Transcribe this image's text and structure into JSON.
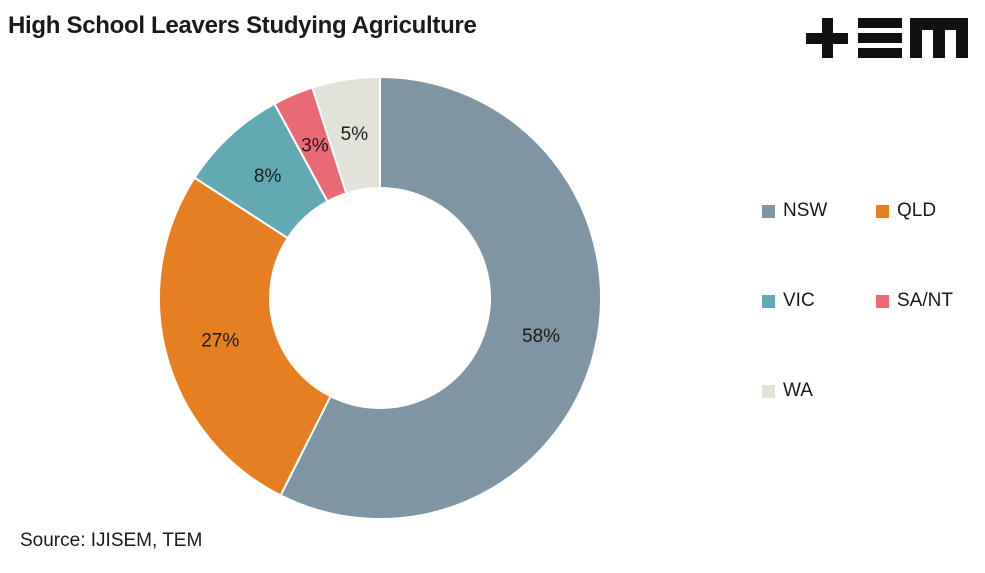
{
  "chart_data": {
    "type": "pie",
    "donut": true,
    "title": "High School Leavers Studying Agriculture",
    "categories": [
      "NSW",
      "QLD",
      "VIC",
      "SA/NT",
      "WA"
    ],
    "values": [
      58,
      27,
      8,
      3,
      5
    ],
    "labels": [
      "58%",
      "27%",
      "8%",
      "3%",
      "5%"
    ],
    "colors": [
      "#7f95a3",
      "#e67e22",
      "#63a9b4",
      "#e96a75",
      "#e3e2d8"
    ],
    "legend_placement": "right"
  },
  "source": "Source: IJISEM, TEM",
  "logo": {
    "text": "+EM",
    "icon": "tem-logo"
  }
}
